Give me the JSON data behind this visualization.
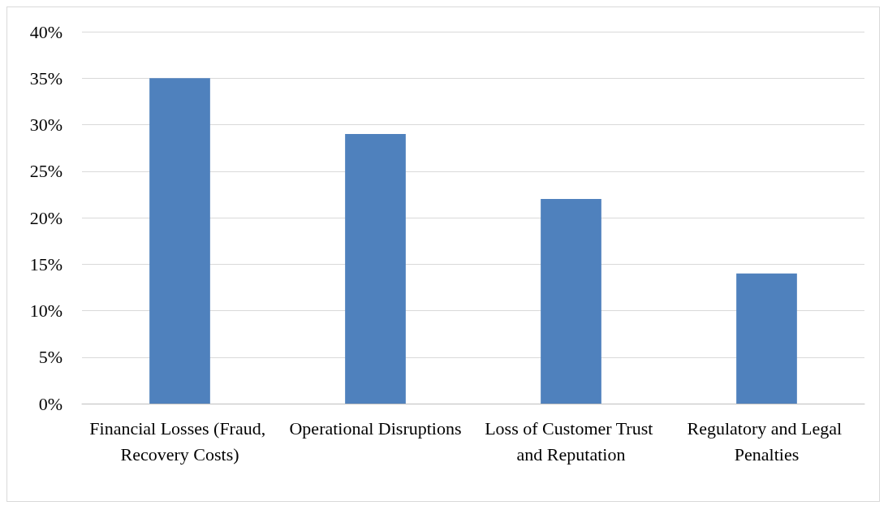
{
  "chart_data": {
    "type": "bar",
    "categories": [
      "Financial Losses (Fraud, Recovery Costs)",
      "Operational Disruptions",
      "Loss of Customer Trust and Reputation",
      "Regulatory and Legal Penalties"
    ],
    "values": [
      35,
      29,
      22,
      14
    ],
    "color": "#4f81bd",
    "ylim": [
      0,
      40
    ],
    "yticks": [
      {
        "value": 0,
        "label": "0%"
      },
      {
        "value": 5,
        "label": "5%"
      },
      {
        "value": 10,
        "label": "10%"
      },
      {
        "value": 15,
        "label": "15%"
      },
      {
        "value": 20,
        "label": "20%"
      },
      {
        "value": 25,
        "label": "25%"
      },
      {
        "value": 30,
        "label": "30%"
      },
      {
        "value": 35,
        "label": "35%"
      },
      {
        "value": 40,
        "label": "40%"
      }
    ],
    "grid": "y"
  }
}
